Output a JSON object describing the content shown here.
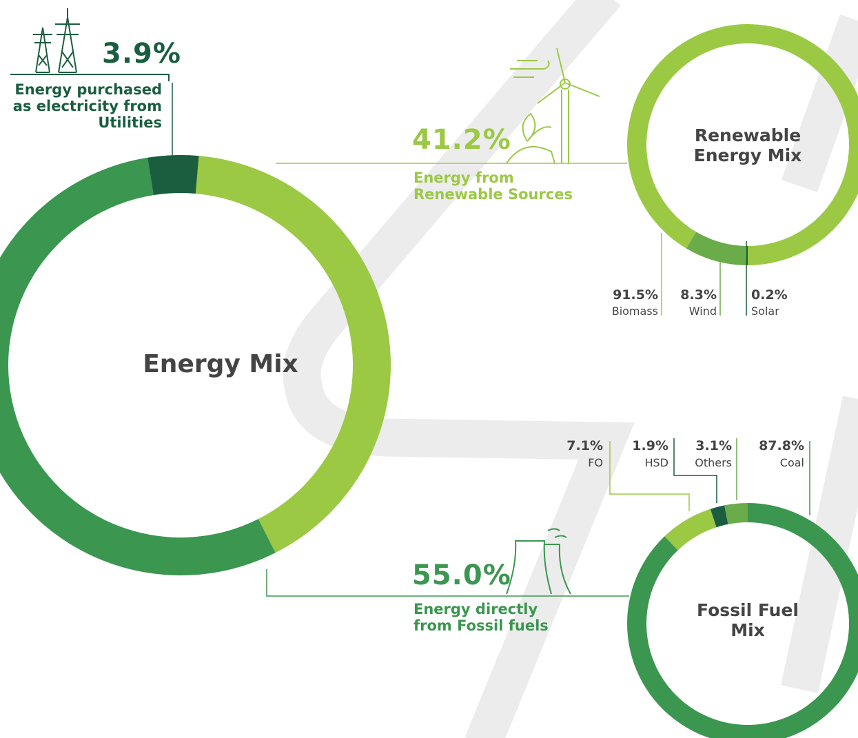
{
  "chart_data": [
    {
      "type": "donut",
      "title": "Energy Mix",
      "categories": [
        "Energy from Renewable Sources",
        "Energy directly from Fossil fuels",
        "Energy purchased as electricity from Utilities"
      ],
      "values": [
        41.2,
        55.0,
        3.9
      ],
      "value_labels": [
        "41.2%",
        "55.0%",
        "3.9%"
      ],
      "colors": [
        "#9bc944",
        "#3b9650",
        "#1a5e3f"
      ]
    },
    {
      "type": "donut",
      "title": "Renewable Energy Mix",
      "categories": [
        "Biomass",
        "Wind",
        "Solar"
      ],
      "values": [
        91.5,
        8.3,
        0.2
      ],
      "value_labels": [
        "91.5%",
        "8.3%",
        "0.2%"
      ],
      "colors": [
        "#9bc944",
        "#6aab4a",
        "#1a5e3f"
      ]
    },
    {
      "type": "donut",
      "title": "Fossil Fuel Mix",
      "categories": [
        "Coal",
        "FO",
        "HSD",
        "Others"
      ],
      "values": [
        87.8,
        7.1,
        1.9,
        3.1
      ],
      "value_labels": [
        "87.8%",
        "7.1%",
        "1.9%",
        "3.1%"
      ],
      "colors": [
        "#3b9650",
        "#9bc944",
        "#1a5e3f",
        "#6aab4a"
      ]
    }
  ]
}
